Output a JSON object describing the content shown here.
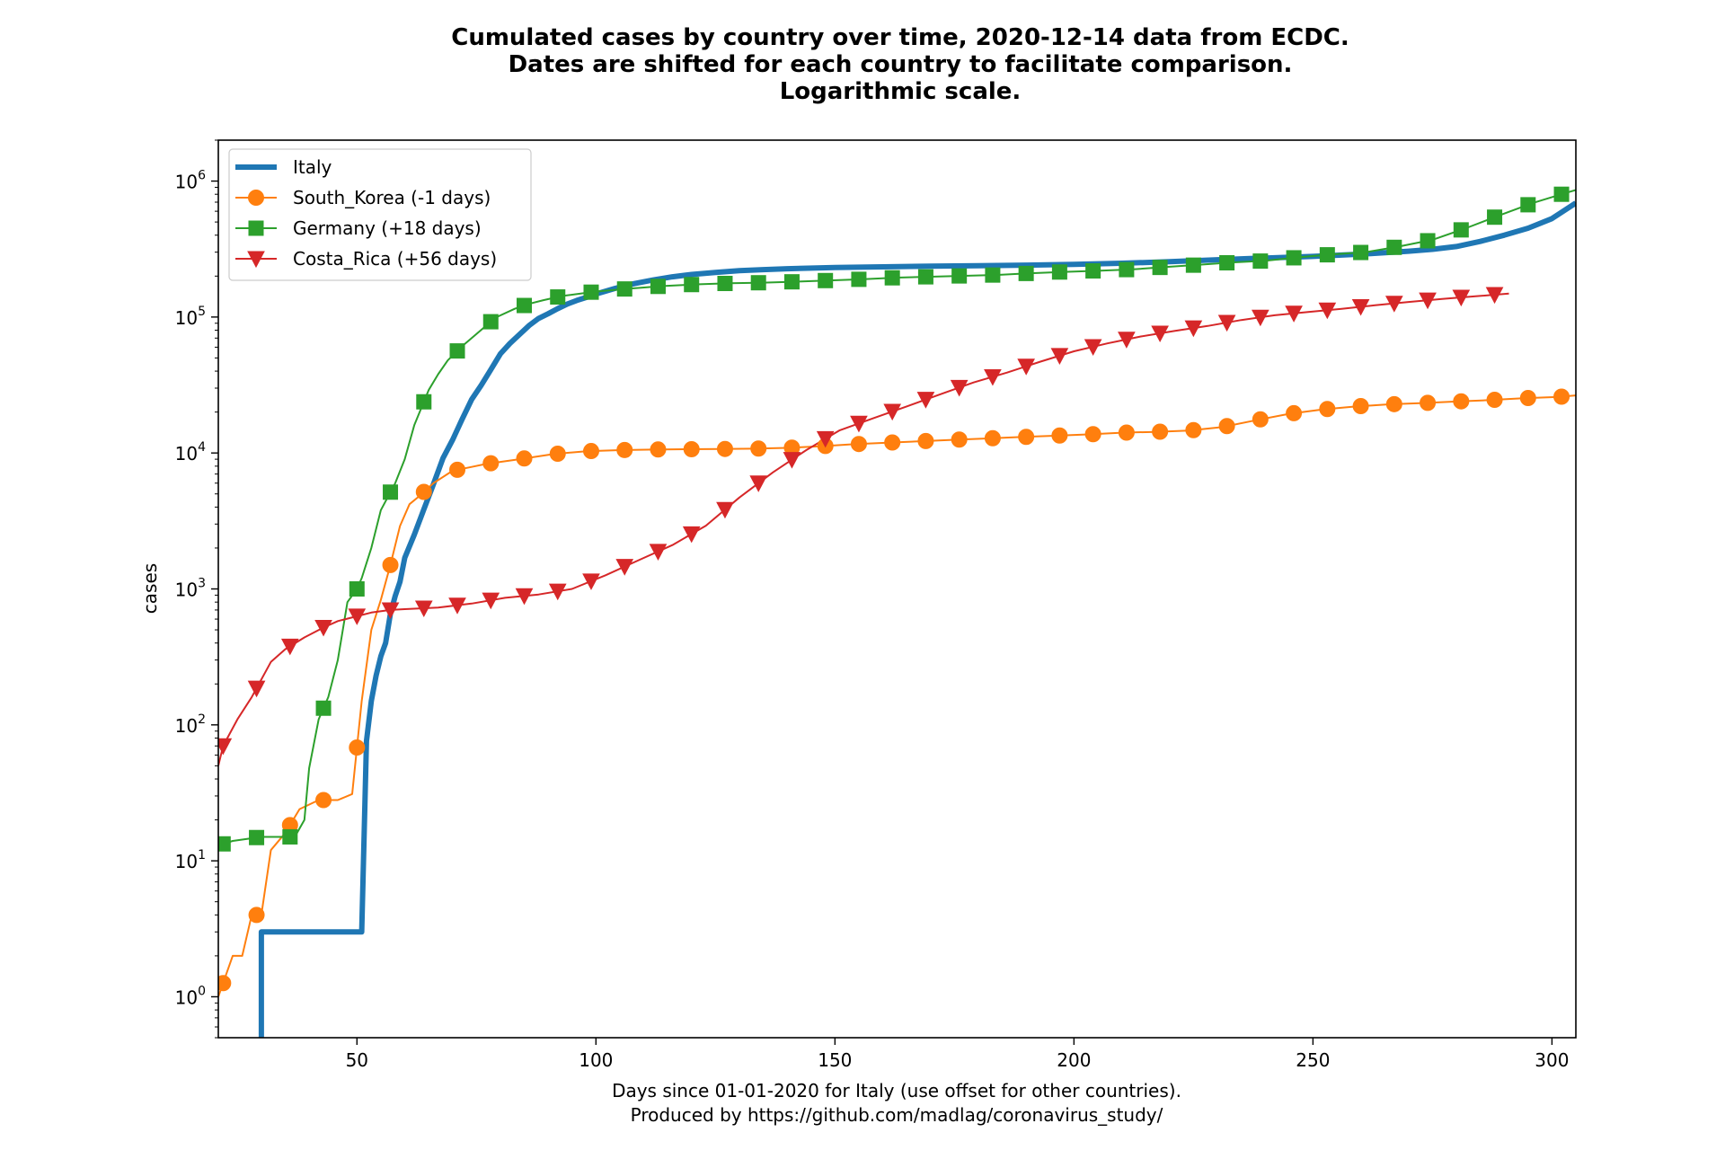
{
  "chart_data": {
    "type": "line",
    "title": [
      "Cumulated cases by country over time, 2020-12-14 data from ECDC.",
      "Dates are shifted for each country to facilitate comparison.",
      "Logarithmic scale."
    ],
    "xlabel": [
      "Days since 01-01-2020 for Italy (use offset for other countries).",
      "Produced by https://github.com/madlag/coronavirus_study/"
    ],
    "ylabel": "cases",
    "xlim": [
      21,
      305
    ],
    "ylim": [
      0.5,
      2000000
    ],
    "yscale": "log",
    "grid": false,
    "legend_position": "top-left",
    "x_ticks": [
      50,
      100,
      150,
      200,
      250,
      300
    ],
    "y_ticks": [
      {
        "value": 1,
        "exp": "0"
      },
      {
        "value": 10,
        "exp": "1"
      },
      {
        "value": 100,
        "exp": "2"
      },
      {
        "value": 1000,
        "exp": "3"
      },
      {
        "value": 10000,
        "exp": "4"
      },
      {
        "value": 100000,
        "exp": "5"
      },
      {
        "value": 1000000,
        "exp": "6"
      }
    ],
    "y_tick_base": "10",
    "series": [
      {
        "name": "Italy",
        "color": "#1f77b4",
        "marker": "none",
        "width": 6,
        "points": [
          [
            30,
            0.3
          ],
          [
            30,
            3
          ],
          [
            51,
            3
          ],
          [
            52,
            76
          ],
          [
            53,
            150
          ],
          [
            54,
            230
          ],
          [
            55,
            320
          ],
          [
            56,
            400
          ],
          [
            57,
            655
          ],
          [
            58,
            888
          ],
          [
            59,
            1128
          ],
          [
            60,
            1694
          ],
          [
            62,
            2502
          ],
          [
            64,
            3858
          ],
          [
            66,
            5883
          ],
          [
            68,
            9172
          ],
          [
            70,
            12462
          ],
          [
            72,
            17660
          ],
          [
            74,
            24747
          ],
          [
            76,
            31506
          ],
          [
            78,
            41035
          ],
          [
            80,
            53578
          ],
          [
            82,
            63927
          ],
          [
            84,
            74386
          ],
          [
            86,
            86498
          ],
          [
            88,
            97689
          ],
          [
            90,
            105792
          ],
          [
            92,
            115242
          ],
          [
            94,
            124632
          ],
          [
            96,
            132547
          ],
          [
            98,
            139422
          ],
          [
            100,
            147577
          ],
          [
            104,
            162488
          ],
          [
            108,
            175925
          ],
          [
            112,
            187327
          ],
          [
            116,
            197675
          ],
          [
            120,
            205463
          ],
          [
            125,
            213013
          ],
          [
            130,
            219070
          ],
          [
            135,
            223096
          ],
          [
            140,
            226699
          ],
          [
            150,
            231139
          ],
          [
            160,
            234013
          ],
          [
            170,
            236651
          ],
          [
            180,
            238833
          ],
          [
            190,
            240961
          ],
          [
            200,
            244216
          ],
          [
            210,
            248803
          ],
          [
            220,
            255278
          ],
          [
            230,
            263949
          ],
          [
            240,
            271515
          ],
          [
            250,
            279000
          ],
          [
            260,
            290000
          ],
          [
            270,
            305000
          ],
          [
            275,
            315000
          ],
          [
            280,
            330000
          ],
          [
            285,
            360000
          ],
          [
            290,
            400000
          ],
          [
            295,
            450000
          ],
          [
            300,
            530000
          ],
          [
            305,
            690000
          ]
        ]
      },
      {
        "name": "South_Korea (-1 days)",
        "color": "#ff7f0e",
        "marker": "circle",
        "width": 2,
        "points": [
          [
            21,
            1
          ],
          [
            24,
            2
          ],
          [
            26,
            2
          ],
          [
            28,
            4
          ],
          [
            30,
            4
          ],
          [
            32,
            12
          ],
          [
            35,
            16
          ],
          [
            38,
            24
          ],
          [
            42,
            28
          ],
          [
            46,
            28
          ],
          [
            49,
            31
          ],
          [
            51,
            150
          ],
          [
            53,
            500
          ],
          [
            55,
            830
          ],
          [
            57,
            1500
          ],
          [
            59,
            2900
          ],
          [
            61,
            4200
          ],
          [
            63,
            4800
          ],
          [
            66,
            6000
          ],
          [
            70,
            7400
          ],
          [
            74,
            7900
          ],
          [
            77,
            8300
          ],
          [
            84,
            9000
          ],
          [
            91,
            9800
          ],
          [
            98,
            10300
          ],
          [
            105,
            10500
          ],
          [
            112,
            10600
          ],
          [
            119,
            10650
          ],
          [
            126,
            10700
          ],
          [
            133,
            10750
          ],
          [
            140,
            10900
          ],
          [
            147,
            11200
          ],
          [
            154,
            11600
          ],
          [
            161,
            11900
          ],
          [
            168,
            12200
          ],
          [
            175,
            12500
          ],
          [
            182,
            12800
          ],
          [
            189,
            13100
          ],
          [
            196,
            13400
          ],
          [
            203,
            13700
          ],
          [
            210,
            14100
          ],
          [
            217,
            14300
          ],
          [
            224,
            14600
          ],
          [
            231,
            15500
          ],
          [
            238,
            17400
          ],
          [
            245,
            19400
          ],
          [
            252,
            20900
          ],
          [
            259,
            22000
          ],
          [
            266,
            22800
          ],
          [
            273,
            23300
          ],
          [
            280,
            23900
          ],
          [
            287,
            24500
          ],
          [
            294,
            25300
          ],
          [
            301,
            25800
          ],
          [
            305,
            26500
          ]
        ]
      },
      {
        "name": "Germany (+18 days)",
        "color": "#2ca02c",
        "marker": "square",
        "width": 2,
        "points": [
          [
            21,
            13
          ],
          [
            24,
            14
          ],
          [
            30,
            15
          ],
          [
            34,
            15
          ],
          [
            37,
            15
          ],
          [
            39,
            20
          ],
          [
            40,
            48
          ],
          [
            42,
            110
          ],
          [
            44,
            160
          ],
          [
            46,
            300
          ],
          [
            48,
            800
          ],
          [
            50,
            1000
          ],
          [
            51,
            1200
          ],
          [
            53,
            2000
          ],
          [
            55,
            3800
          ],
          [
            58,
            6000
          ],
          [
            60,
            9000
          ],
          [
            62,
            16000
          ],
          [
            65,
            29000
          ],
          [
            67,
            38000
          ],
          [
            69,
            48000
          ],
          [
            72,
            61000
          ],
          [
            75,
            75000
          ],
          [
            79,
            99000
          ],
          [
            83,
            115000
          ],
          [
            86,
            125000
          ],
          [
            89,
            133000
          ],
          [
            93,
            143000
          ],
          [
            100,
            154000
          ],
          [
            107,
            162000
          ],
          [
            114,
            169000
          ],
          [
            121,
            174000
          ],
          [
            128,
            177000
          ],
          [
            135,
            179000
          ],
          [
            142,
            182000
          ],
          [
            149,
            186000
          ],
          [
            156,
            190000
          ],
          [
            163,
            195000
          ],
          [
            170,
            198000
          ],
          [
            177,
            201000
          ],
          [
            184,
            204000
          ],
          [
            191,
            210000
          ],
          [
            198,
            215000
          ],
          [
            205,
            219000
          ],
          [
            212,
            224000
          ],
          [
            219,
            233000
          ],
          [
            226,
            242000
          ],
          [
            233,
            252000
          ],
          [
            240,
            259000
          ],
          [
            247,
            275000
          ],
          [
            254,
            289000
          ],
          [
            261,
            300000
          ],
          [
            268,
            330000
          ],
          [
            275,
            370000
          ],
          [
            282,
            450000
          ],
          [
            289,
            560000
          ],
          [
            296,
            690000
          ],
          [
            303,
            820000
          ],
          [
            305,
            860000
          ]
        ]
      },
      {
        "name": "Costa_Rica (+56 days)",
        "color": "#d62728",
        "marker": "triangle-down",
        "width": 2,
        "points": [
          [
            21,
            50
          ],
          [
            22,
            70
          ],
          [
            25,
            110
          ],
          [
            28,
            160
          ],
          [
            32,
            290
          ],
          [
            35,
            360
          ],
          [
            39,
            440
          ],
          [
            43,
            520
          ],
          [
            46,
            580
          ],
          [
            50,
            630
          ],
          [
            53,
            670
          ],
          [
            57,
            700
          ],
          [
            60,
            710
          ],
          [
            67,
            730
          ],
          [
            74,
            780
          ],
          [
            81,
            860
          ],
          [
            88,
            910
          ],
          [
            95,
            1000
          ],
          [
            102,
            1260
          ],
          [
            109,
            1630
          ],
          [
            116,
            2100
          ],
          [
            123,
            2920
          ],
          [
            130,
            4700
          ],
          [
            137,
            7200
          ],
          [
            144,
            10500
          ],
          [
            151,
            14700
          ],
          [
            158,
            18000
          ],
          [
            165,
            22000
          ],
          [
            172,
            27000
          ],
          [
            179,
            33000
          ],
          [
            186,
            39000
          ],
          [
            193,
            47000
          ],
          [
            200,
            56000
          ],
          [
            207,
            64000
          ],
          [
            214,
            72000
          ],
          [
            221,
            79000
          ],
          [
            228,
            86000
          ],
          [
            235,
            95000
          ],
          [
            242,
            103000
          ],
          [
            249,
            109000
          ],
          [
            256,
            115000
          ],
          [
            263,
            122000
          ],
          [
            270,
            129000
          ],
          [
            277,
            136000
          ],
          [
            284,
            142000
          ],
          [
            291,
            149000
          ]
        ]
      }
    ]
  }
}
